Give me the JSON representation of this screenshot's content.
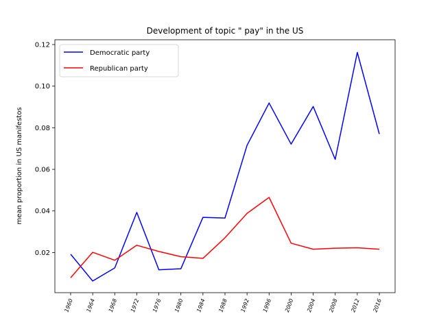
{
  "chart_data": {
    "type": "line",
    "title": "Development of topic \" pay\" in the US",
    "xlabel": "",
    "ylabel": "mean proportion in US manifestos",
    "x": [
      "1960",
      "1964",
      "1968",
      "1972",
      "1976",
      "1980",
      "1984",
      "1988",
      "1992",
      "1996",
      "2000",
      "2004",
      "2008",
      "2012",
      "2016"
    ],
    "yticks": [
      "0.02",
      "0.04",
      "0.06",
      "0.08",
      "0.10",
      "0.12"
    ],
    "ylim": [
      0.0007,
      0.1223
    ],
    "legend_position": "upper-left",
    "grid": false,
    "series": [
      {
        "name": "Democratic party",
        "color": "#0000ff",
        "values": [
          0.0192,
          0.0063,
          0.0126,
          0.0393,
          0.0117,
          0.0122,
          0.0369,
          0.0366,
          0.0715,
          0.0919,
          0.0721,
          0.0902,
          0.0648,
          0.1162,
          0.077
        ]
      },
      {
        "name": "Republican party",
        "color": "#ff0000",
        "values": [
          0.0079,
          0.0201,
          0.0163,
          0.0235,
          0.0205,
          0.018,
          0.0172,
          0.0271,
          0.0388,
          0.0465,
          0.0245,
          0.0216,
          0.0221,
          0.0223,
          0.0216
        ]
      }
    ]
  }
}
